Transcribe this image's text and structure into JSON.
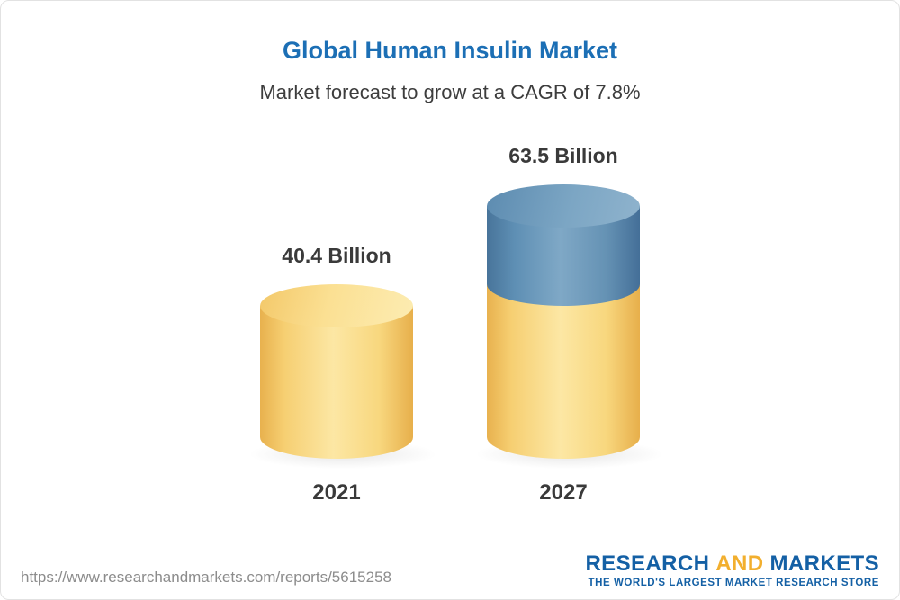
{
  "page": {
    "title": "Global Human Insulin Market",
    "subtitle": "Market forecast to grow at a CAGR of 7.8%"
  },
  "chart_data": {
    "type": "bar",
    "style": "3d-cylinder",
    "title": "Global Human Insulin Market",
    "subtitle": "Market forecast to grow at a CAGR of 7.8%",
    "categories": [
      "2021",
      "2027"
    ],
    "values": [
      40.4,
      63.5
    ],
    "unit": "Billion",
    "legend": false,
    "bars": [
      {
        "category": "2021",
        "value": 40.4,
        "label": "40.4 Billion",
        "segments": [
          {
            "name": "base",
            "value": 40.4,
            "color": "#f6cf72"
          }
        ]
      },
      {
        "category": "2027",
        "value": 63.5,
        "label": "63.5 Billion",
        "segments": [
          {
            "name": "base",
            "value": 40.4,
            "color": "#f6cf72"
          },
          {
            "name": "growth",
            "value": 23.1,
            "color": "#5e8fb4"
          }
        ]
      }
    ]
  },
  "footer": {
    "url": "https://www.researchandmarkets.com/reports/5615258",
    "logo": {
      "research": "RESEARCH",
      "and": "AND",
      "markets": "MARKETS",
      "tagline": "THE WORLD'S LARGEST MARKET RESEARCH STORE"
    }
  },
  "colors": {
    "title_blue": "#1c6fb5",
    "text_dark": "#3a3a3a",
    "bar_yellow": "#f6cf72",
    "bar_blue": "#5e8fb4",
    "url_gray": "#8c8c8c",
    "logo_blue": "#1460a5",
    "logo_gold": "#f2af2e"
  }
}
